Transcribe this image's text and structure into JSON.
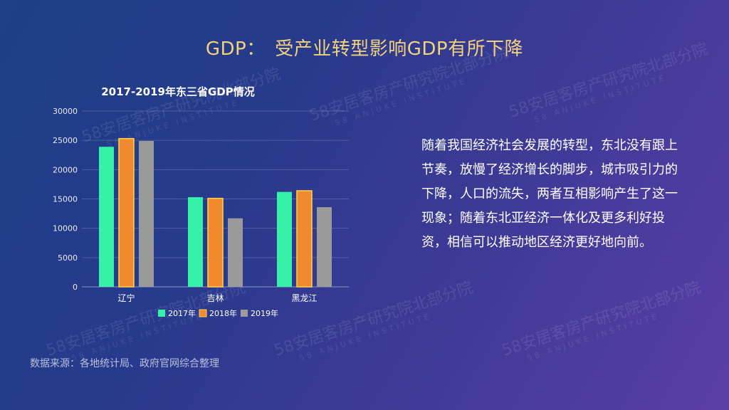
{
  "title": "GDP：　受产业转型影响GDP有所下降",
  "paragraph": "随着我国经济社会发展的转型，东北没有跟上节奏，放慢了经济增长的脚步，城市吸引力的下降，人口的流失，两者互相影响产生了这一现象；随着东北亚经济一体化及更多利好投资，相信可以推动地区经济更好地向前。",
  "source": "数据来源：各地统计局、政府官网综合整理",
  "watermark": {
    "main": "58安居客房产研究院",
    "suffix": "北部分院",
    "sub": "58 ANJUKE INSTITUTE"
  },
  "chart_data": {
    "type": "bar",
    "title": "2017-2019年东三省GDP情况",
    "categories": [
      "辽宁",
      "吉林",
      "黑龙江"
    ],
    "series": [
      {
        "name": "2017年",
        "values": [
          23900,
          15300,
          16200
        ],
        "color": "#35f2a8"
      },
      {
        "name": "2018年",
        "values": [
          25300,
          15100,
          16400
        ],
        "color": "#f08a2e"
      },
      {
        "name": "2019年",
        "values": [
          24900,
          11700,
          13600
        ],
        "color": "#9a9a9a"
      }
    ],
    "ylim": [
      0,
      30000
    ],
    "yticks": [
      0,
      5000,
      10000,
      15000,
      20000,
      25000,
      30000
    ],
    "grid": true,
    "legend": "bottom"
  }
}
